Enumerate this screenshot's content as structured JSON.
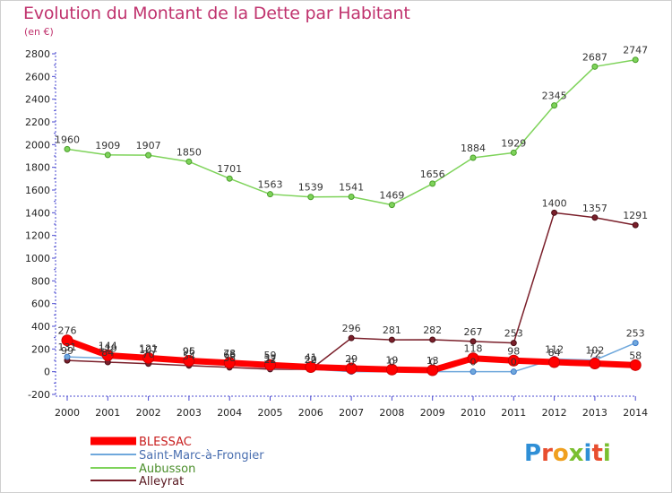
{
  "title": "Evolution du Montant de la Dette par Habitant",
  "subtitle": "(en €)",
  "logo_text": "Proxiti",
  "colors": {
    "title": "#c0336e",
    "axis": "#4a4ad0",
    "logo": [
      "#2f8fd6",
      "#e84e2f",
      "#f0a020",
      "#7abf30",
      "#2f8fd6",
      "#e84e2f",
      "#7abf30"
    ]
  },
  "chart_data": {
    "type": "line",
    "x": [
      "2000",
      "2001",
      "2002",
      "2003",
      "2004",
      "2005",
      "2006",
      "2007",
      "2008",
      "2009",
      "2010",
      "2011",
      "2012",
      "2013",
      "2014"
    ],
    "ylim": [
      -200,
      2800
    ],
    "yticks": [
      "-200",
      "0",
      "200",
      "400",
      "600",
      "800",
      "1000",
      "1200",
      "1400",
      "1600",
      "1800",
      "2000",
      "2200",
      "2400",
      "2600",
      "2800"
    ],
    "grid": false,
    "legend_position": "bottom-left",
    "series": [
      {
        "name": "BLESSAC",
        "color": "#ff0000",
        "values": [
          276,
          144,
          121,
          96,
          78,
          59,
          41,
          29,
          19,
          13,
          118,
          98,
          84,
          72,
          58
        ],
        "labels": [
          "276",
          "144",
          "121",
          "96",
          "78",
          "59",
          "41",
          "29",
          "19",
          "13",
          "118",
          "98",
          "84",
          "72",
          "58"
        ]
      },
      {
        "name": "Saint-Marc-à-Frongier",
        "color": "#6fa8dc",
        "values": [
          131,
          119,
          107,
          95,
          66,
          32,
          22,
          0,
          0,
          0,
          0,
          0,
          112,
          102,
          253
        ],
        "labels": [
          "131",
          "119",
          "107",
          "95",
          "66",
          "32",
          "22",
          "0",
          "0",
          "0",
          "0",
          "0",
          "112",
          "102",
          "253"
        ]
      },
      {
        "name": "Aubusson",
        "color": "#7ed35a",
        "values": [
          1960,
          1909,
          1907,
          1850,
          1701,
          1563,
          1539,
          1541,
          1469,
          1656,
          1884,
          1929,
          2345,
          2687,
          2747
        ],
        "labels": [
          "1960",
          "1909",
          "1907",
          "1850",
          "1701",
          "1563",
          "1539",
          "1541",
          "1469",
          "1656",
          "1884",
          "1929",
          "2345",
          "2687",
          "2747"
        ]
      },
      {
        "name": "Alleyrat",
        "color": "#7a1f2a",
        "values": [
          99,
          84,
          70,
          54,
          38,
          22,
          20,
          296,
          281,
          282,
          267,
          253,
          1400,
          1357,
          1291
        ],
        "labels": [
          "99",
          "84",
          "70",
          "54",
          "38",
          "22",
          "20",
          "296",
          "281",
          "282",
          "267",
          "253",
          "1400",
          "1357",
          "1291"
        ]
      }
    ]
  }
}
